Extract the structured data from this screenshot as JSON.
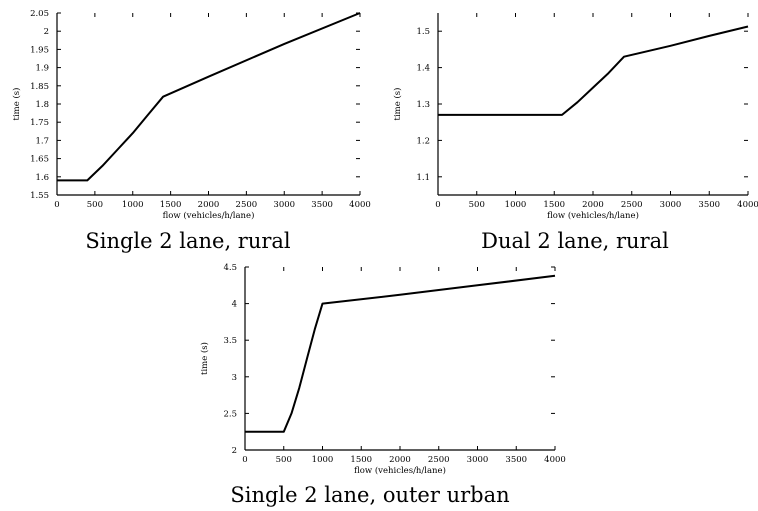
{
  "chart_data": [
    {
      "type": "line",
      "title": "Single 2 lane, rural",
      "xlabel": "flow (vehicles/h/lane)",
      "ylabel": "time (s)",
      "xlim": [
        0,
        4000
      ],
      "ylim": [
        1.55,
        2.05
      ],
      "xticks": [
        "0",
        "500",
        "1000",
        "1500",
        "2000",
        "2500",
        "3000",
        "3500",
        "4000"
      ],
      "yticks": [
        "1.55",
        "1.6",
        "1.65",
        "1.7",
        "1.75",
        "1.8",
        "1.85",
        "1.9",
        "1.95",
        "2",
        "2.05"
      ],
      "grid": false,
      "series": [
        {
          "x": [
            0,
            400,
            600,
            800,
            1000,
            1200,
            1400,
            2000,
            3000,
            4000
          ],
          "y": [
            1.59,
            1.59,
            1.63,
            1.675,
            1.72,
            1.77,
            1.82,
            1.875,
            1.965,
            2.05
          ]
        }
      ]
    },
    {
      "type": "line",
      "title": "Dual 2 lane, rural",
      "xlabel": "flow (vehicles/h/lane)",
      "ylabel": "time (s)",
      "xlim": [
        0,
        4000
      ],
      "ylim": [
        1.05,
        1.55
      ],
      "xticks": [
        "0",
        "500",
        "1000",
        "1500",
        "2000",
        "2500",
        "3000",
        "3500",
        "4000"
      ],
      "yticks": [
        "1.1",
        "1.2",
        "1.3",
        "1.4",
        "1.5"
      ],
      "grid": false,
      "series": [
        {
          "x": [
            0,
            1600,
            1800,
            2000,
            2200,
            2400,
            3000,
            3500,
            4000
          ],
          "y": [
            1.27,
            1.27,
            1.305,
            1.345,
            1.385,
            1.43,
            1.46,
            1.487,
            1.513
          ]
        }
      ]
    },
    {
      "type": "line",
      "title": "Single 2 lane, outer urban",
      "xlabel": "flow (vehicles/h/lane)",
      "ylabel": "time (s)",
      "xlim": [
        0,
        4000
      ],
      "ylim": [
        2,
        4.5
      ],
      "xticks": [
        "0",
        "500",
        "1000",
        "1500",
        "2000",
        "2500",
        "3000",
        "3500",
        "4000"
      ],
      "yticks": [
        "2",
        "2.5",
        "3",
        "3.5",
        "4",
        "4.5"
      ],
      "grid": false,
      "series": [
        {
          "x": [
            0,
            500,
            600,
            700,
            800,
            900,
            1000,
            2000,
            3000,
            4000
          ],
          "y": [
            2.25,
            2.25,
            2.5,
            2.85,
            3.25,
            3.65,
            4.0,
            4.12,
            4.25,
            4.38
          ]
        }
      ]
    }
  ]
}
